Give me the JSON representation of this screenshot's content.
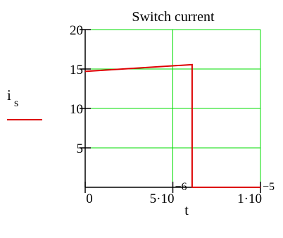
{
  "chart_data": {
    "type": "line",
    "title": "Switch current",
    "xlabel": "t",
    "ylabel": "i",
    "ylabel_subscript": "s",
    "xlim": [
      0,
      1e-05
    ],
    "ylim": [
      0,
      20
    ],
    "grid": true,
    "grid_color": "#00dd00",
    "x_ticks": [
      {
        "value": 0,
        "mantissa": "0",
        "exponent": ""
      },
      {
        "value": 5e-06,
        "mantissa": "5·10",
        "exponent": "−6"
      },
      {
        "value": 1e-05,
        "mantissa": "1·10",
        "exponent": "−5"
      }
    ],
    "y_ticks": [
      {
        "value": 5,
        "label": "5"
      },
      {
        "value": 10,
        "label": "10"
      },
      {
        "value": 15,
        "label": "15"
      },
      {
        "value": 20,
        "label": "20"
      }
    ],
    "legend": {
      "placement": "left",
      "sample_color": "#dd0000"
    },
    "series": [
      {
        "color": "#dd0000",
        "points": [
          {
            "x": 0,
            "y": 14.7
          },
          {
            "x": 6.1e-06,
            "y": 15.55
          },
          {
            "x": 6.1e-06,
            "y": 0
          },
          {
            "x": 1e-05,
            "y": 0
          }
        ]
      }
    ]
  }
}
